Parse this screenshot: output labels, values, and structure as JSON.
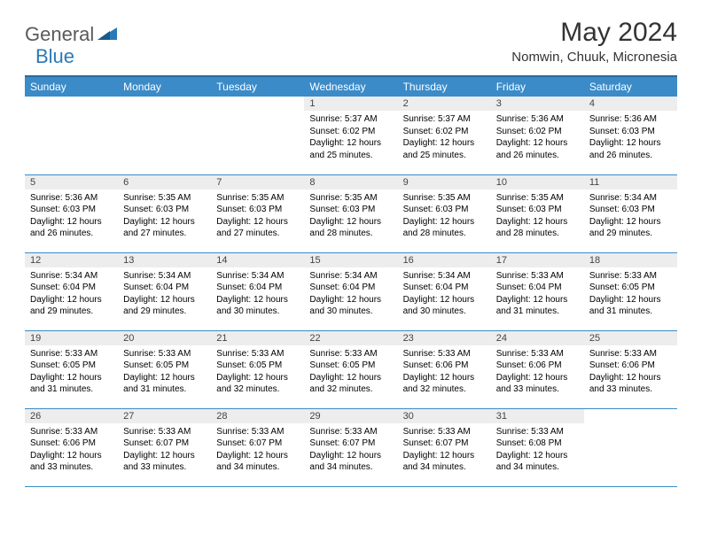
{
  "brand": {
    "word1": "General",
    "word2": "Blue"
  },
  "title": "May 2024",
  "location": "Nomwin, Chuuk, Micronesia",
  "colors": {
    "header_bg": "#3b8bc8",
    "header_border": "#2a6a9a",
    "daynum_bg": "#ededed",
    "row_border": "#3b8bc8",
    "logo_gray": "#5a5a5a",
    "logo_blue": "#2a7ab8"
  },
  "weekdays": [
    "Sunday",
    "Monday",
    "Tuesday",
    "Wednesday",
    "Thursday",
    "Friday",
    "Saturday"
  ],
  "weeks": [
    [
      {
        "n": "",
        "sr": "",
        "ss": "",
        "dl": ""
      },
      {
        "n": "",
        "sr": "",
        "ss": "",
        "dl": ""
      },
      {
        "n": "",
        "sr": "",
        "ss": "",
        "dl": ""
      },
      {
        "n": "1",
        "sr": "5:37 AM",
        "ss": "6:02 PM",
        "dl": "12 hours and 25 minutes."
      },
      {
        "n": "2",
        "sr": "5:37 AM",
        "ss": "6:02 PM",
        "dl": "12 hours and 25 minutes."
      },
      {
        "n": "3",
        "sr": "5:36 AM",
        "ss": "6:02 PM",
        "dl": "12 hours and 26 minutes."
      },
      {
        "n": "4",
        "sr": "5:36 AM",
        "ss": "6:03 PM",
        "dl": "12 hours and 26 minutes."
      }
    ],
    [
      {
        "n": "5",
        "sr": "5:36 AM",
        "ss": "6:03 PM",
        "dl": "12 hours and 26 minutes."
      },
      {
        "n": "6",
        "sr": "5:35 AM",
        "ss": "6:03 PM",
        "dl": "12 hours and 27 minutes."
      },
      {
        "n": "7",
        "sr": "5:35 AM",
        "ss": "6:03 PM",
        "dl": "12 hours and 27 minutes."
      },
      {
        "n": "8",
        "sr": "5:35 AM",
        "ss": "6:03 PM",
        "dl": "12 hours and 28 minutes."
      },
      {
        "n": "9",
        "sr": "5:35 AM",
        "ss": "6:03 PM",
        "dl": "12 hours and 28 minutes."
      },
      {
        "n": "10",
        "sr": "5:35 AM",
        "ss": "6:03 PM",
        "dl": "12 hours and 28 minutes."
      },
      {
        "n": "11",
        "sr": "5:34 AM",
        "ss": "6:03 PM",
        "dl": "12 hours and 29 minutes."
      }
    ],
    [
      {
        "n": "12",
        "sr": "5:34 AM",
        "ss": "6:04 PM",
        "dl": "12 hours and 29 minutes."
      },
      {
        "n": "13",
        "sr": "5:34 AM",
        "ss": "6:04 PM",
        "dl": "12 hours and 29 minutes."
      },
      {
        "n": "14",
        "sr": "5:34 AM",
        "ss": "6:04 PM",
        "dl": "12 hours and 30 minutes."
      },
      {
        "n": "15",
        "sr": "5:34 AM",
        "ss": "6:04 PM",
        "dl": "12 hours and 30 minutes."
      },
      {
        "n": "16",
        "sr": "5:34 AM",
        "ss": "6:04 PM",
        "dl": "12 hours and 30 minutes."
      },
      {
        "n": "17",
        "sr": "5:33 AM",
        "ss": "6:04 PM",
        "dl": "12 hours and 31 minutes."
      },
      {
        "n": "18",
        "sr": "5:33 AM",
        "ss": "6:05 PM",
        "dl": "12 hours and 31 minutes."
      }
    ],
    [
      {
        "n": "19",
        "sr": "5:33 AM",
        "ss": "6:05 PM",
        "dl": "12 hours and 31 minutes."
      },
      {
        "n": "20",
        "sr": "5:33 AM",
        "ss": "6:05 PM",
        "dl": "12 hours and 31 minutes."
      },
      {
        "n": "21",
        "sr": "5:33 AM",
        "ss": "6:05 PM",
        "dl": "12 hours and 32 minutes."
      },
      {
        "n": "22",
        "sr": "5:33 AM",
        "ss": "6:05 PM",
        "dl": "12 hours and 32 minutes."
      },
      {
        "n": "23",
        "sr": "5:33 AM",
        "ss": "6:06 PM",
        "dl": "12 hours and 32 minutes."
      },
      {
        "n": "24",
        "sr": "5:33 AM",
        "ss": "6:06 PM",
        "dl": "12 hours and 33 minutes."
      },
      {
        "n": "25",
        "sr": "5:33 AM",
        "ss": "6:06 PM",
        "dl": "12 hours and 33 minutes."
      }
    ],
    [
      {
        "n": "26",
        "sr": "5:33 AM",
        "ss": "6:06 PM",
        "dl": "12 hours and 33 minutes."
      },
      {
        "n": "27",
        "sr": "5:33 AM",
        "ss": "6:07 PM",
        "dl": "12 hours and 33 minutes."
      },
      {
        "n": "28",
        "sr": "5:33 AM",
        "ss": "6:07 PM",
        "dl": "12 hours and 34 minutes."
      },
      {
        "n": "29",
        "sr": "5:33 AM",
        "ss": "6:07 PM",
        "dl": "12 hours and 34 minutes."
      },
      {
        "n": "30",
        "sr": "5:33 AM",
        "ss": "6:07 PM",
        "dl": "12 hours and 34 minutes."
      },
      {
        "n": "31",
        "sr": "5:33 AM",
        "ss": "6:08 PM",
        "dl": "12 hours and 34 minutes."
      },
      {
        "n": "",
        "sr": "",
        "ss": "",
        "dl": ""
      }
    ]
  ],
  "labels": {
    "sunrise": "Sunrise: ",
    "sunset": "Sunset: ",
    "daylight": "Daylight: "
  }
}
